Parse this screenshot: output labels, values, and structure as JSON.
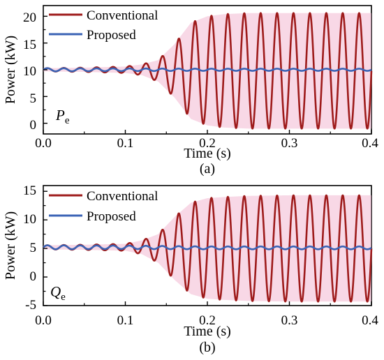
{
  "chart_data": [
    {
      "type": "line",
      "panel_label": "(a)",
      "xlabel": "Time (s)",
      "ylabel": "Power (kW)",
      "xlim": [
        0.0,
        0.4
      ],
      "ylim": [
        -2,
        22
      ],
      "x_ticks": [
        "0.0",
        "0.1",
        "0.2",
        "0.3",
        "0.4"
      ],
      "y_ticks": [
        "0",
        "5",
        "10",
        "15",
        "20"
      ],
      "variable": "P",
      "variable_sub": "e",
      "legend_position": "top-left",
      "grid": false,
      "series": [
        {
          "name": "Conventional",
          "color": "#9e1b1b",
          "envelope_color": "#f3b8d2",
          "frequency_hz": 50,
          "x": [
            0.0,
            0.05,
            0.1,
            0.12,
            0.14,
            0.16,
            0.18,
            0.2,
            0.22,
            0.25,
            0.3,
            0.35,
            0.4
          ],
          "center": [
            10,
            10,
            10,
            10,
            9.8,
            9.8,
            9.8,
            9.8,
            9.8,
            9.8,
            9.8,
            9.8,
            9.8
          ],
          "amplitude": [
            0.3,
            0.4,
            0.6,
            1.0,
            2.0,
            5.0,
            9.0,
            10.2,
            10.6,
            10.8,
            10.8,
            10.8,
            10.8
          ]
        },
        {
          "name": "Proposed",
          "color": "#3a63b5",
          "envelope_color": null,
          "frequency_hz": 50,
          "x": [
            0.0,
            0.1,
            0.2,
            0.3,
            0.4
          ],
          "center": [
            10,
            10,
            10,
            10,
            10
          ],
          "amplitude": [
            0.3,
            0.25,
            0.2,
            0.2,
            0.2
          ]
        }
      ]
    },
    {
      "type": "line",
      "panel_label": "(b)",
      "xlabel": "Time (s)",
      "ylabel": "Power (kW)",
      "xlim": [
        0.0,
        0.4
      ],
      "ylim": [
        -5,
        16
      ],
      "x_ticks": [
        "0.0",
        "0.1",
        "0.2",
        "0.3",
        "0.4"
      ],
      "y_ticks": [
        "-5",
        "0",
        "5",
        "10",
        "15"
      ],
      "variable": "Q",
      "variable_sub": "e",
      "legend_position": "top-left",
      "grid": false,
      "series": [
        {
          "name": "Conventional",
          "color": "#9e1b1b",
          "envelope_color": "#f3b8d2",
          "frequency_hz": 50,
          "x": [
            0.0,
            0.05,
            0.1,
            0.12,
            0.14,
            0.16,
            0.18,
            0.2,
            0.22,
            0.25,
            0.3,
            0.35,
            0.4
          ],
          "center": [
            5.2,
            5.2,
            5.2,
            5.2,
            5.0,
            5.0,
            5.0,
            5.0,
            5.0,
            5.0,
            5.0,
            5.0,
            5.0
          ],
          "amplitude": [
            0.35,
            0.45,
            0.6,
            1.2,
            2.5,
            5.5,
            8.0,
            8.8,
            9.0,
            9.2,
            9.3,
            9.3,
            9.3
          ]
        },
        {
          "name": "Proposed",
          "color": "#3a63b5",
          "envelope_color": null,
          "frequency_hz": 50,
          "x": [
            0.0,
            0.1,
            0.2,
            0.3,
            0.4
          ],
          "center": [
            5.2,
            5.2,
            5.1,
            5.1,
            5.1
          ],
          "amplitude": [
            0.35,
            0.3,
            0.25,
            0.25,
            0.25
          ]
        }
      ]
    }
  ]
}
